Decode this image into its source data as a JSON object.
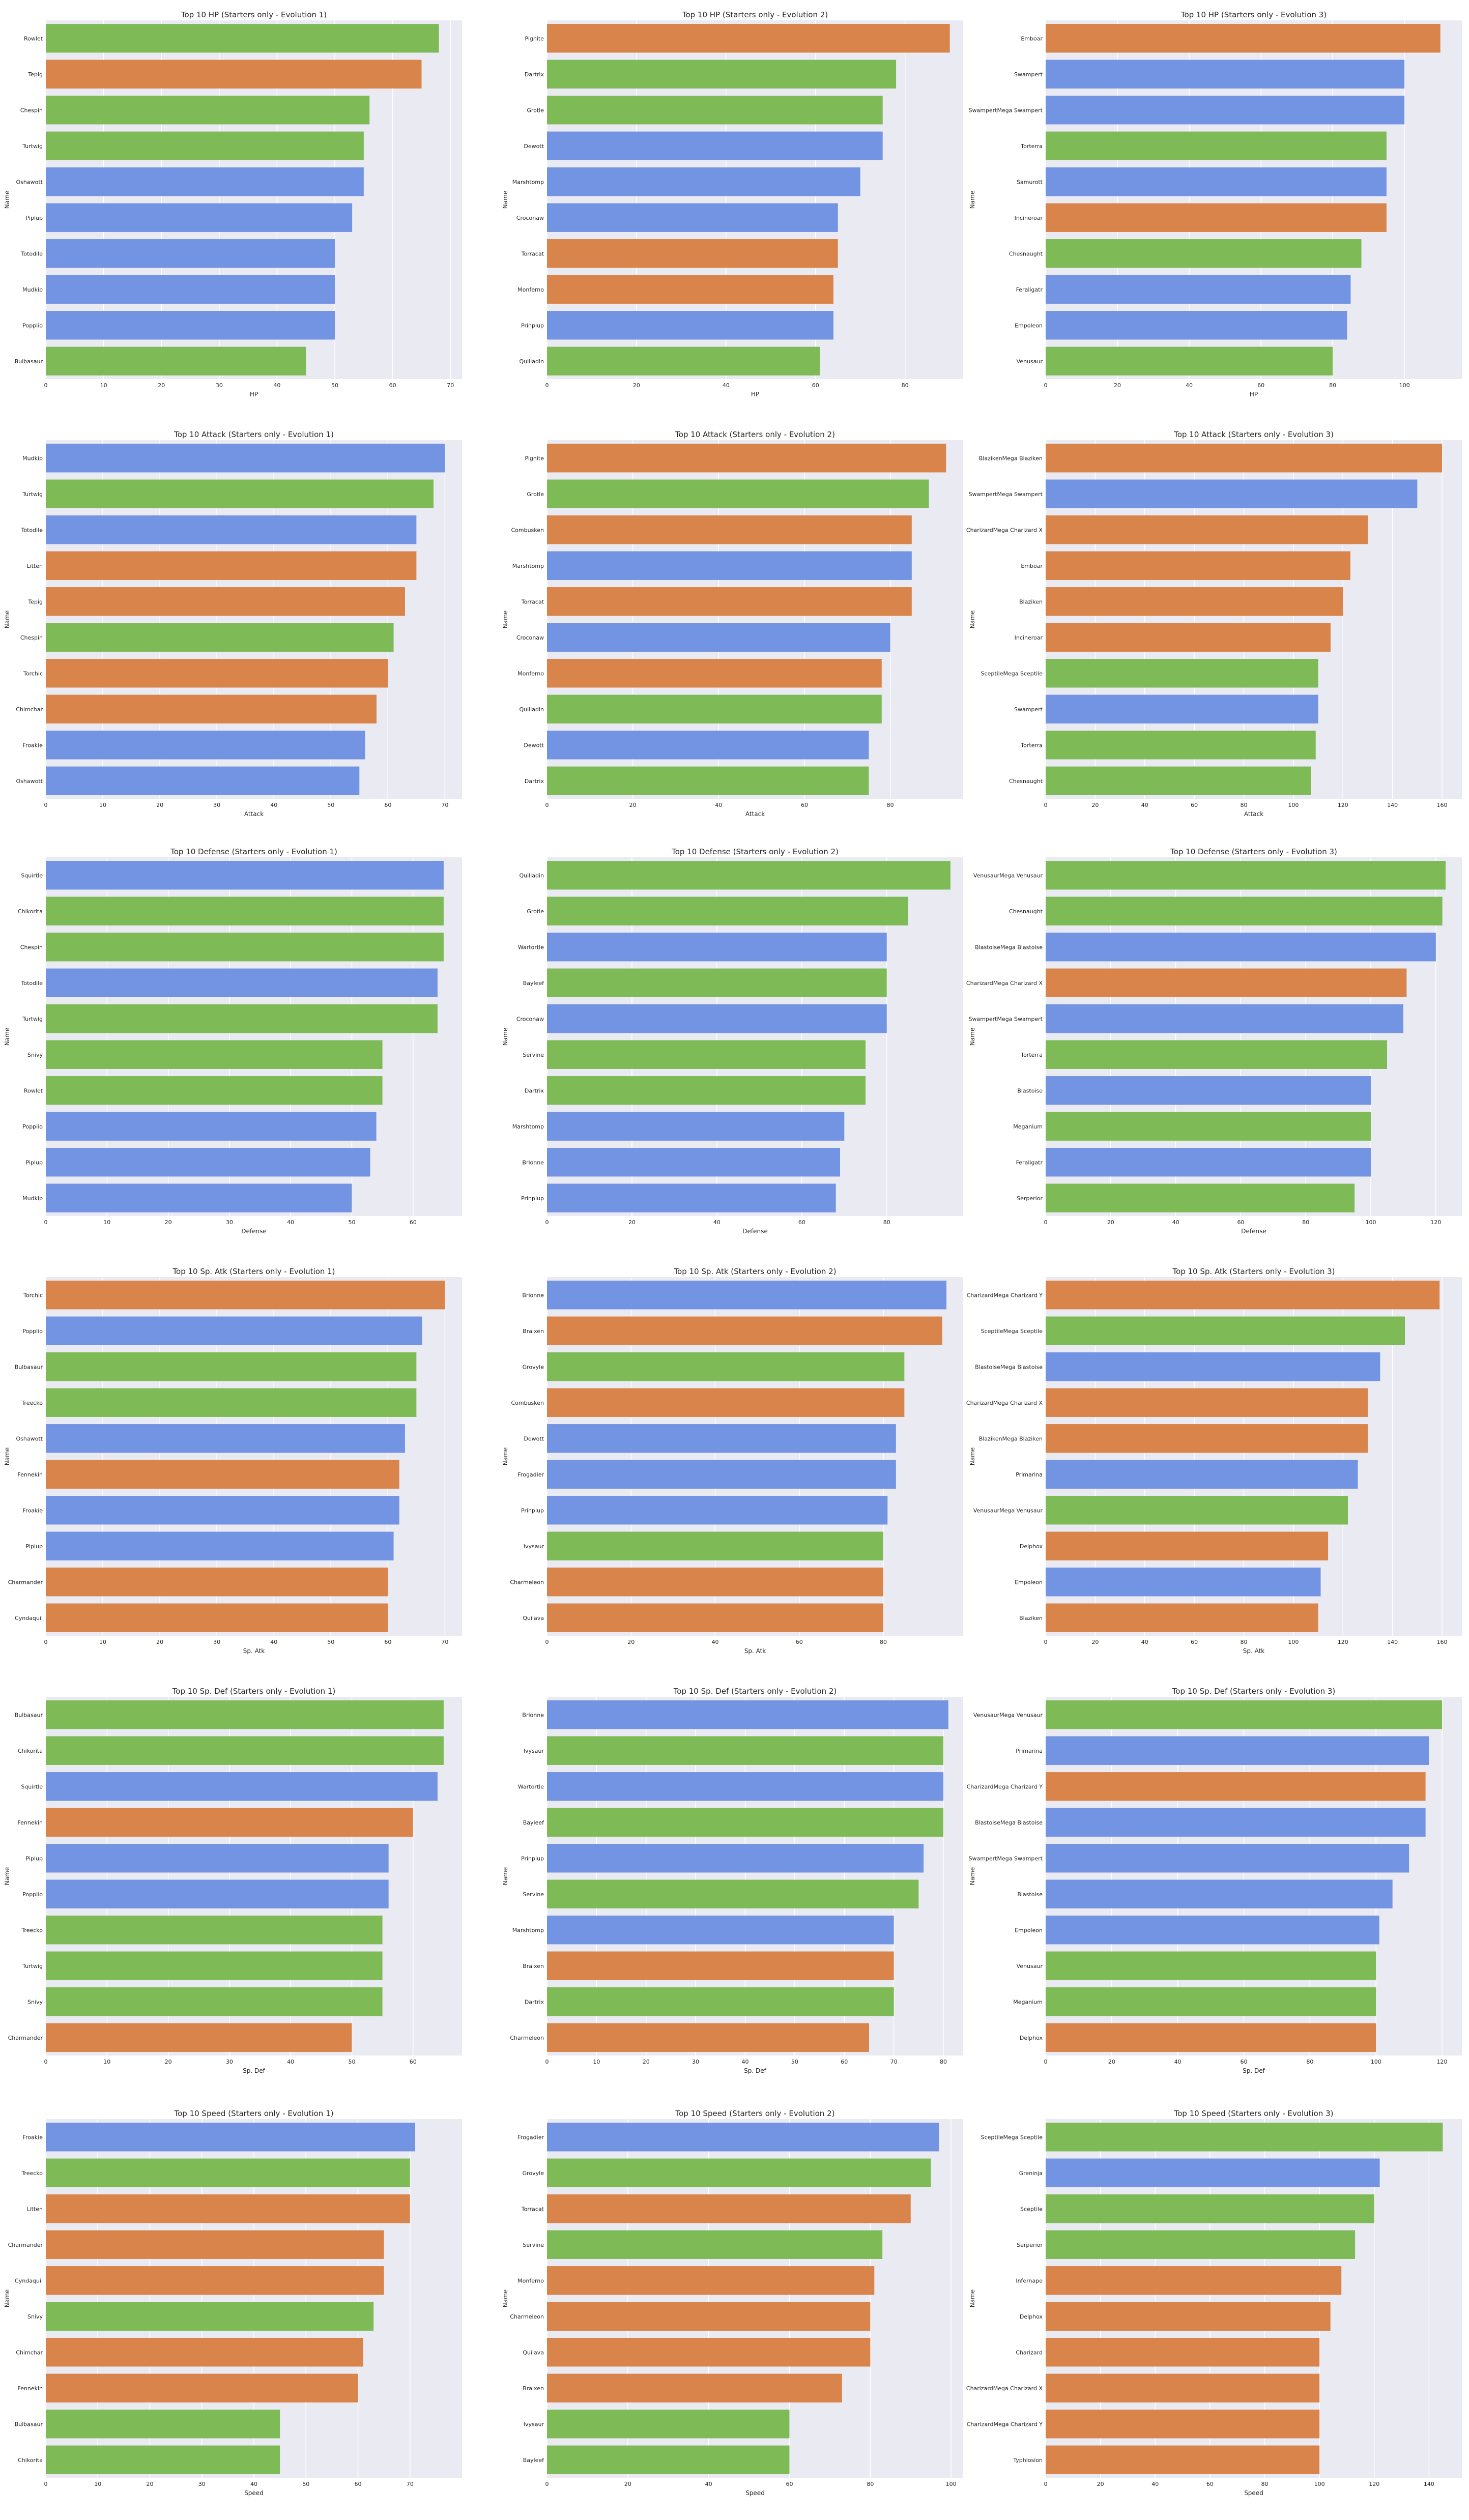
{
  "colors": {
    "Grass": "#7ebb57",
    "Fire": "#d9844a",
    "Water": "#7294e2",
    "plot_bg": "#eaeaf2",
    "grid": "#ffffff"
  },
  "chart_data": [
    {
      "type": "bar",
      "orientation": "horizontal",
      "title": "Top 10 HP (Starters only - Evolution 1)",
      "xlabel": "HP",
      "ylabel": "Name",
      "xlim": [
        0,
        72
      ],
      "xticks": [
        0,
        10,
        20,
        30,
        40,
        50,
        60,
        70
      ],
      "categories": [
        "Rowlet",
        "Tepig",
        "Chespin",
        "Turtwig",
        "Oshawott",
        "Piplup",
        "Totodile",
        "Mudkip",
        "Popplio",
        "Bulbasaur"
      ],
      "values": [
        68,
        65,
        56,
        55,
        55,
        53,
        50,
        50,
        50,
        45
      ],
      "types": [
        "Grass",
        "Fire",
        "Grass",
        "Grass",
        "Water",
        "Water",
        "Water",
        "Water",
        "Water",
        "Grass"
      ]
    },
    {
      "type": "bar",
      "orientation": "horizontal",
      "title": "Top 10 HP (Starters only - Evolution 2)",
      "xlabel": "HP",
      "ylabel": "Name",
      "xlim": [
        0,
        93
      ],
      "xticks": [
        0,
        20,
        40,
        60,
        80
      ],
      "categories": [
        "Pignite",
        "Dartrix",
        "Grotle",
        "Dewott",
        "Marshtomp",
        "Croconaw",
        "Torracat",
        "Monferno",
        "Prinplup",
        "Quilladin"
      ],
      "values": [
        90,
        78,
        75,
        75,
        70,
        65,
        65,
        64,
        64,
        61
      ],
      "types": [
        "Fire",
        "Grass",
        "Grass",
        "Water",
        "Water",
        "Water",
        "Fire",
        "Fire",
        "Water",
        "Grass"
      ]
    },
    {
      "type": "bar",
      "orientation": "horizontal",
      "title": "Top 10 HP (Starters only - Evolution 3)",
      "xlabel": "HP",
      "ylabel": "Name",
      "xlim": [
        0,
        116
      ],
      "xticks": [
        0,
        20,
        40,
        60,
        80,
        100
      ],
      "categories": [
        "Emboar",
        "Swampert",
        "SwampertMega Swampert",
        "Torterra",
        "Samurott",
        "Incineroar",
        "Chesnaught",
        "Feraligatr",
        "Empoleon",
        "Venusaur"
      ],
      "values": [
        110,
        100,
        100,
        95,
        95,
        95,
        88,
        85,
        84,
        80
      ],
      "types": [
        "Fire",
        "Water",
        "Water",
        "Grass",
        "Water",
        "Fire",
        "Grass",
        "Water",
        "Water",
        "Grass"
      ]
    },
    {
      "type": "bar",
      "orientation": "horizontal",
      "title": "Top 10 Attack (Starters only - Evolution 1)",
      "xlabel": "Attack",
      "ylabel": "Name",
      "xlim": [
        0,
        73
      ],
      "xticks": [
        0,
        10,
        20,
        30,
        40,
        50,
        60,
        70
      ],
      "categories": [
        "Mudkip",
        "Turtwig",
        "Totodile",
        "Litten",
        "Tepig",
        "Chespin",
        "Torchic",
        "Chimchar",
        "Froakie",
        "Oshawott"
      ],
      "values": [
        70,
        68,
        65,
        65,
        63,
        61,
        60,
        58,
        56,
        55
      ],
      "types": [
        "Water",
        "Grass",
        "Water",
        "Fire",
        "Fire",
        "Grass",
        "Fire",
        "Fire",
        "Water",
        "Water"
      ]
    },
    {
      "type": "bar",
      "orientation": "horizontal",
      "title": "Top 10 Attack (Starters only - Evolution 2)",
      "xlabel": "Attack",
      "ylabel": "Name",
      "xlim": [
        0,
        97
      ],
      "xticks": [
        0,
        20,
        40,
        60,
        80
      ],
      "categories": [
        "Pignite",
        "Grotle",
        "Combusken",
        "Marshtomp",
        "Torracat",
        "Croconaw",
        "Monferno",
        "Quilladin",
        "Dewott",
        "Dartrix"
      ],
      "values": [
        93,
        89,
        85,
        85,
        85,
        80,
        78,
        78,
        75,
        75
      ],
      "types": [
        "Fire",
        "Grass",
        "Fire",
        "Water",
        "Fire",
        "Water",
        "Fire",
        "Grass",
        "Water",
        "Grass"
      ]
    },
    {
      "type": "bar",
      "orientation": "horizontal",
      "title": "Top 10 Attack (Starters only - Evolution 3)",
      "xlabel": "Attack",
      "ylabel": "Name",
      "xlim": [
        0,
        168
      ],
      "xticks": [
        0,
        20,
        40,
        60,
        80,
        100,
        120,
        140,
        160
      ],
      "categories": [
        "BlazikenMega Blaziken",
        "SwampertMega Swampert",
        "CharizardMega Charizard X",
        "Emboar",
        "Blaziken",
        "Incineroar",
        "SceptileMega Sceptile",
        "Swampert",
        "Torterra",
        "Chesnaught"
      ],
      "values": [
        160,
        150,
        130,
        123,
        120,
        115,
        110,
        110,
        109,
        107
      ],
      "types": [
        "Fire",
        "Water",
        "Fire",
        "Fire",
        "Fire",
        "Fire",
        "Grass",
        "Water",
        "Grass",
        "Grass"
      ]
    },
    {
      "type": "bar",
      "orientation": "horizontal",
      "title": "Top 10 Defense (Starters only - Evolution 1)",
      "xlabel": "Defense",
      "ylabel": "Name",
      "xlim": [
        0,
        68
      ],
      "xticks": [
        0,
        10,
        20,
        30,
        40,
        50,
        60
      ],
      "categories": [
        "Squirtle",
        "Chikorita",
        "Chespin",
        "Totodile",
        "Turtwig",
        "Snivy",
        "Rowlet",
        "Popplio",
        "Piplup",
        "Mudkip"
      ],
      "values": [
        65,
        65,
        65,
        64,
        64,
        55,
        55,
        54,
        53,
        50
      ],
      "types": [
        "Water",
        "Grass",
        "Grass",
        "Water",
        "Grass",
        "Grass",
        "Grass",
        "Water",
        "Water",
        "Water"
      ]
    },
    {
      "type": "bar",
      "orientation": "horizontal",
      "title": "Top 10 Defense (Starters only - Evolution 2)",
      "xlabel": "Defense",
      "ylabel": "Name",
      "xlim": [
        0,
        98
      ],
      "xticks": [
        0,
        20,
        40,
        60,
        80
      ],
      "categories": [
        "Quilladin",
        "Grotle",
        "Wartortle",
        "Bayleef",
        "Croconaw",
        "Servine",
        "Dartrix",
        "Marshtomp",
        "Brionne",
        "Prinplup"
      ],
      "values": [
        95,
        85,
        80,
        80,
        80,
        75,
        75,
        70,
        69,
        68
      ],
      "types": [
        "Grass",
        "Grass",
        "Water",
        "Grass",
        "Water",
        "Grass",
        "Grass",
        "Water",
        "Water",
        "Water"
      ]
    },
    {
      "type": "bar",
      "orientation": "horizontal",
      "title": "Top 10 Defense (Starters only - Evolution 3)",
      "xlabel": "Defense",
      "ylabel": "Name",
      "xlim": [
        0,
        128
      ],
      "xticks": [
        0,
        20,
        40,
        60,
        80,
        100,
        120
      ],
      "categories": [
        "VenusaurMega Venusaur",
        "Chesnaught",
        "BlastoiseMega Blastoise",
        "CharizardMega Charizard X",
        "SwampertMega Swampert",
        "Torterra",
        "Blastoise",
        "Meganium",
        "Feraligatr",
        "Serperior"
      ],
      "values": [
        123,
        122,
        120,
        111,
        110,
        105,
        100,
        100,
        100,
        95
      ],
      "types": [
        "Grass",
        "Grass",
        "Water",
        "Fire",
        "Water",
        "Grass",
        "Water",
        "Grass",
        "Water",
        "Grass"
      ]
    },
    {
      "type": "bar",
      "orientation": "horizontal",
      "title": "Top 10 Sp. Atk (Starters only - Evolution 1)",
      "xlabel": "Sp. Atk",
      "ylabel": "Name",
      "xlim": [
        0,
        73
      ],
      "xticks": [
        0,
        10,
        20,
        30,
        40,
        50,
        60,
        70
      ],
      "categories": [
        "Torchic",
        "Popplio",
        "Bulbasaur",
        "Treecko",
        "Oshawott",
        "Fennekin",
        "Froakie",
        "Piplup",
        "Charmander",
        "Cyndaquil"
      ],
      "values": [
        70,
        66,
        65,
        65,
        63,
        62,
        62,
        61,
        60,
        60
      ],
      "types": [
        "Fire",
        "Water",
        "Grass",
        "Grass",
        "Water",
        "Fire",
        "Water",
        "Water",
        "Fire",
        "Fire"
      ]
    },
    {
      "type": "bar",
      "orientation": "horizontal",
      "title": "Top 10 Sp. Atk (Starters only - Evolution 2)",
      "xlabel": "Sp. Atk",
      "ylabel": "Name",
      "xlim": [
        0,
        99
      ],
      "xticks": [
        0,
        20,
        40,
        60,
        80
      ],
      "categories": [
        "Brionne",
        "Braixen",
        "Grovyle",
        "Combusken",
        "Dewott",
        "Frogadier",
        "Prinplup",
        "Ivysaur",
        "Charmeleon",
        "Quilava"
      ],
      "values": [
        95,
        94,
        85,
        85,
        83,
        83,
        81,
        80,
        80,
        80
      ],
      "types": [
        "Water",
        "Fire",
        "Grass",
        "Fire",
        "Water",
        "Water",
        "Water",
        "Grass",
        "Fire",
        "Fire"
      ]
    },
    {
      "type": "bar",
      "orientation": "horizontal",
      "title": "Top 10 Sp. Atk (Starters only - Evolution 3)",
      "xlabel": "Sp. Atk",
      "ylabel": "Name",
      "xlim": [
        0,
        168
      ],
      "xticks": [
        0,
        20,
        40,
        60,
        80,
        100,
        120,
        140,
        160
      ],
      "categories": [
        "CharizardMega Charizard Y",
        "SceptileMega Sceptile",
        "BlastoiseMega Blastoise",
        "CharizardMega Charizard X",
        "BlazikenMega Blaziken",
        "Primarina",
        "VenusaurMega Venusaur",
        "Delphox",
        "Empoleon",
        "Blaziken"
      ],
      "values": [
        159,
        145,
        135,
        130,
        130,
        126,
        122,
        114,
        111,
        110
      ],
      "types": [
        "Fire",
        "Grass",
        "Water",
        "Fire",
        "Fire",
        "Water",
        "Grass",
        "Fire",
        "Water",
        "Fire"
      ]
    },
    {
      "type": "bar",
      "orientation": "horizontal",
      "title": "Top 10 Sp. Def (Starters only - Evolution 1)",
      "xlabel": "Sp. Def",
      "ylabel": "Name",
      "xlim": [
        0,
        68
      ],
      "xticks": [
        0,
        10,
        20,
        30,
        40,
        50,
        60
      ],
      "categories": [
        "Bulbasaur",
        "Chikorita",
        "Squirtle",
        "Fennekin",
        "Piplup",
        "Popplio",
        "Treecko",
        "Turtwig",
        "Snivy",
        "Charmander"
      ],
      "values": [
        65,
        65,
        64,
        60,
        56,
        56,
        55,
        55,
        55,
        50
      ],
      "types": [
        "Grass",
        "Grass",
        "Water",
        "Fire",
        "Water",
        "Water",
        "Grass",
        "Grass",
        "Grass",
        "Fire"
      ]
    },
    {
      "type": "bar",
      "orientation": "horizontal",
      "title": "Top 10 Sp. Def (Starters only - Evolution 2)",
      "xlabel": "Sp. Def",
      "ylabel": "Name",
      "xlim": [
        0,
        84
      ],
      "xticks": [
        0,
        10,
        20,
        30,
        40,
        50,
        60,
        70,
        80
      ],
      "categories": [
        "Brionne",
        "Ivysaur",
        "Wartortle",
        "Bayleef",
        "Prinplup",
        "Servine",
        "Marshtomp",
        "Braixen",
        "Dartrix",
        "Charmeleon"
      ],
      "values": [
        81,
        80,
        80,
        80,
        76,
        75,
        70,
        70,
        70,
        65
      ],
      "types": [
        "Water",
        "Grass",
        "Water",
        "Grass",
        "Water",
        "Grass",
        "Water",
        "Fire",
        "Grass",
        "Fire"
      ]
    },
    {
      "type": "bar",
      "orientation": "horizontal",
      "title": "Top 10 Sp. Def (Starters only - Evolution 3)",
      "xlabel": "Sp. Def",
      "ylabel": "Name",
      "xlim": [
        0,
        126
      ],
      "xticks": [
        0,
        20,
        40,
        60,
        80,
        100,
        120
      ],
      "categories": [
        "VenusaurMega Venusaur",
        "Primarina",
        "CharizardMega Charizard Y",
        "BlastoiseMega Blastoise",
        "SwampertMega Swampert",
        "Blastoise",
        "Empoleon",
        "Venusaur",
        "Meganium",
        "Delphox"
      ],
      "values": [
        120,
        116,
        115,
        115,
        110,
        105,
        101,
        100,
        100,
        100
      ],
      "types": [
        "Grass",
        "Water",
        "Fire",
        "Water",
        "Water",
        "Water",
        "Water",
        "Grass",
        "Grass",
        "Fire"
      ]
    },
    {
      "type": "bar",
      "orientation": "horizontal",
      "title": "Top 10 Speed (Starters only - Evolution 1)",
      "xlabel": "Speed",
      "ylabel": "Name",
      "xlim": [
        0,
        80
      ],
      "xticks": [
        0,
        10,
        20,
        30,
        40,
        50,
        60,
        70
      ],
      "categories": [
        "Froakie",
        "Treecko",
        "Litten",
        "Charmander",
        "Cyndaquil",
        "Snivy",
        "Chimchar",
        "Fennekin",
        "Bulbasaur",
        "Chikorita"
      ],
      "values": [
        71,
        70,
        70,
        65,
        65,
        63,
        61,
        60,
        45,
        45
      ],
      "types": [
        "Water",
        "Grass",
        "Fire",
        "Fire",
        "Fire",
        "Grass",
        "Fire",
        "Fire",
        "Grass",
        "Grass"
      ]
    },
    {
      "type": "bar",
      "orientation": "horizontal",
      "title": "Top 10 Speed (Starters only - Evolution 2)",
      "xlabel": "Speed",
      "ylabel": "Name",
      "xlim": [
        0,
        103
      ],
      "xticks": [
        0,
        20,
        40,
        60,
        80,
        100
      ],
      "categories": [
        "Frogadier",
        "Grovyle",
        "Torracat",
        "Servine",
        "Monferno",
        "Charmeleon",
        "Quilava",
        "Braixen",
        "Ivysaur",
        "Bayleef"
      ],
      "values": [
        97,
        95,
        90,
        83,
        81,
        80,
        80,
        73,
        60,
        60
      ],
      "types": [
        "Water",
        "Grass",
        "Fire",
        "Grass",
        "Fire",
        "Fire",
        "Fire",
        "Fire",
        "Grass",
        "Grass"
      ]
    },
    {
      "type": "bar",
      "orientation": "horizontal",
      "title": "Top 10 Speed (Starters only - Evolution 3)",
      "xlabel": "Speed",
      "ylabel": "Name",
      "xlim": [
        0,
        152
      ],
      "xticks": [
        0,
        20,
        40,
        60,
        80,
        100,
        120,
        140
      ],
      "categories": [
        "SceptileMega Sceptile",
        "Greninja",
        "Sceptile",
        "Serperior",
        "Infernape",
        "Delphox",
        "Charizard",
        "CharizardMega Charizard X",
        "CharizardMega Charizard Y",
        "Typhlosion"
      ],
      "values": [
        145,
        122,
        120,
        113,
        108,
        104,
        100,
        100,
        100,
        100
      ],
      "types": [
        "Grass",
        "Water",
        "Grass",
        "Grass",
        "Fire",
        "Fire",
        "Fire",
        "Fire",
        "Fire",
        "Fire"
      ]
    }
  ]
}
